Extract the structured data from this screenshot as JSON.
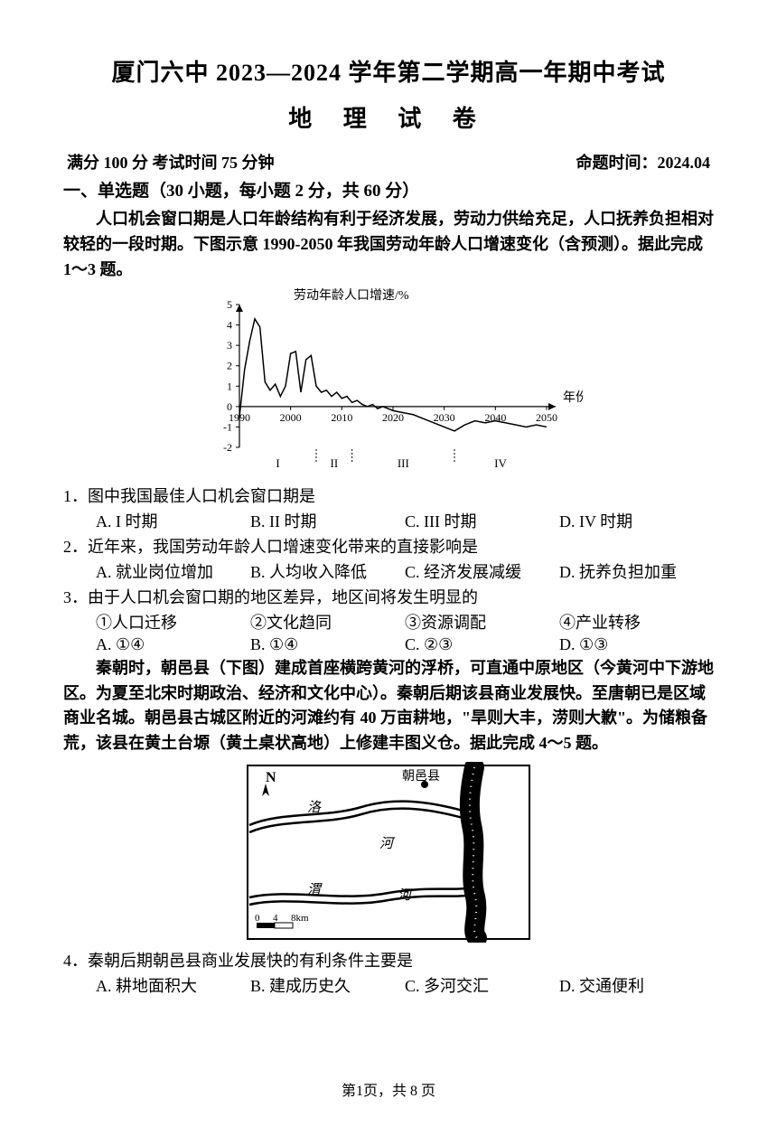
{
  "header": {
    "title_line1": "厦门六中 2023—2024 学年第二学期高一年期中考试",
    "title_line2": "地 理 试 卷",
    "meta_left": "满分 100 分  考试时间 75 分钟",
    "meta_right": "命题时间：2024.04"
  },
  "section1": {
    "heading": "一、单选题（30 小题，每小题 2 分，共 60 分）",
    "intro1": "人口机会窗口期是人口年龄结构有利于经济发展，劳动力供给充足，人口抚养负担相对较轻的一段时期。下图示意 1990-2050 年我国劳动年龄人口增速变化（含预测）。据此完成 1～3 题。"
  },
  "chart": {
    "type": "line",
    "ylabel": "劳动年龄人口增速/%",
    "xlabel": "年份",
    "ylim": [
      -2,
      5
    ],
    "yticks": [
      -2,
      -1,
      0,
      1,
      2,
      3,
      4,
      5
    ],
    "xlim": [
      1990,
      2050
    ],
    "xticks": [
      1990,
      2000,
      2010,
      2020,
      2030,
      2040,
      2050
    ],
    "xtick_labels": [
      "1990",
      "2000",
      "2010",
      "2020",
      "2030",
      "2040",
      "2050"
    ],
    "regions": [
      "I",
      "II",
      "III",
      "IV"
    ],
    "region_bounds": [
      [
        1990,
        2005
      ],
      [
        2005,
        2012
      ],
      [
        2012,
        2032
      ],
      [
        2032,
        2050
      ]
    ],
    "line_color": "#000000",
    "axis_color": "#000000",
    "background_color": "#ffffff",
    "tick_font_size": 12,
    "label_font_size": 14,
    "line_width": 1.5,
    "data": [
      [
        1990,
        -0.5
      ],
      [
        1991,
        1.8
      ],
      [
        1992,
        3.2
      ],
      [
        1993,
        4.3
      ],
      [
        1994,
        3.9
      ],
      [
        1995,
        1.2
      ],
      [
        1996,
        0.8
      ],
      [
        1997,
        1.1
      ],
      [
        1998,
        0.5
      ],
      [
        1999,
        1.0
      ],
      [
        2000,
        2.6
      ],
      [
        2001,
        2.7
      ],
      [
        2002,
        0.7
      ],
      [
        2003,
        2.3
      ],
      [
        2004,
        2.5
      ],
      [
        2005,
        1.0
      ],
      [
        2006,
        0.7
      ],
      [
        2007,
        0.8
      ],
      [
        2008,
        0.5
      ],
      [
        2009,
        0.7
      ],
      [
        2010,
        0.4
      ],
      [
        2011,
        0.5
      ],
      [
        2012,
        0.2
      ],
      [
        2013,
        0.3
      ],
      [
        2014,
        0.1
      ],
      [
        2015,
        0.0
      ],
      [
        2016,
        0.1
      ],
      [
        2017,
        -0.1
      ],
      [
        2018,
        0.0
      ],
      [
        2019,
        -0.1
      ],
      [
        2020,
        -0.2
      ],
      [
        2022,
        -0.3
      ],
      [
        2024,
        -0.4
      ],
      [
        2026,
        -0.6
      ],
      [
        2028,
        -0.8
      ],
      [
        2030,
        -1.0
      ],
      [
        2032,
        -1.2
      ],
      [
        2034,
        -0.9
      ],
      [
        2036,
        -0.7
      ],
      [
        2038,
        -0.8
      ],
      [
        2040,
        -0.7
      ],
      [
        2042,
        -0.8
      ],
      [
        2044,
        -0.9
      ],
      [
        2046,
        -1.0
      ],
      [
        2048,
        -0.9
      ],
      [
        2050,
        -1.0
      ]
    ]
  },
  "q1": {
    "stem": "1．图中我国最佳人口机会窗口期是",
    "A": "A. I 时期",
    "B": "B. II 时期",
    "C": "C. III 时期",
    "D": "D. IV 时期"
  },
  "q2": {
    "stem": "2．近年来，我国劳动年龄人口增速变化带来的直接影响是",
    "A": "A. 就业岗位增加",
    "B": "B. 人均收入降低",
    "C": "C. 经济发展减缓",
    "D": "D. 抚养负担加重"
  },
  "q3": {
    "stem": "3．由于人口机会窗口期的地区差异，地区间将发生明显的",
    "c1": "①人口迁移",
    "c2": "②文化趋同",
    "c3": "③资源调配",
    "c4": "④产业转移",
    "A": "A. ①④",
    "B": "B. ①④",
    "C": "C. ②③",
    "D": "D. ①③"
  },
  "intro2": "秦朝时，朝邑县（下图）建成首座横跨黄河的浮桥，可直通中原地区（今黄河中下游地区。为夏至北宋时期政治、经济和文化中心）。秦朝后期该县商业发展快。至唐朝已是区域商业名城。朝邑县古城区附近的河滩约有 40 万亩耕地，\"旱则大丰，涝则大歉\"。为储粮备荒，该县在黄土台塬（黄土桌状高地）上修建丰图义仓。据此完成 4～5 题。",
  "map": {
    "label_county": "朝邑县",
    "label_luo": "洛",
    "label_he": "河",
    "label_wei1": "渭",
    "label_wei2": "河",
    "scale_text": "0   4   8km",
    "north": "N",
    "line_color": "#000000",
    "river_color": "#000000",
    "background_color": "#ffffff"
  },
  "q4": {
    "stem": "4．秦朝后期朝邑县商业发展快的有利条件主要是",
    "A": "A. 耕地面积大",
    "B": "B. 建成历史久",
    "C": "C. 多河交汇",
    "D": "D. 交通便利"
  },
  "footer": "第1页，共 8 页"
}
